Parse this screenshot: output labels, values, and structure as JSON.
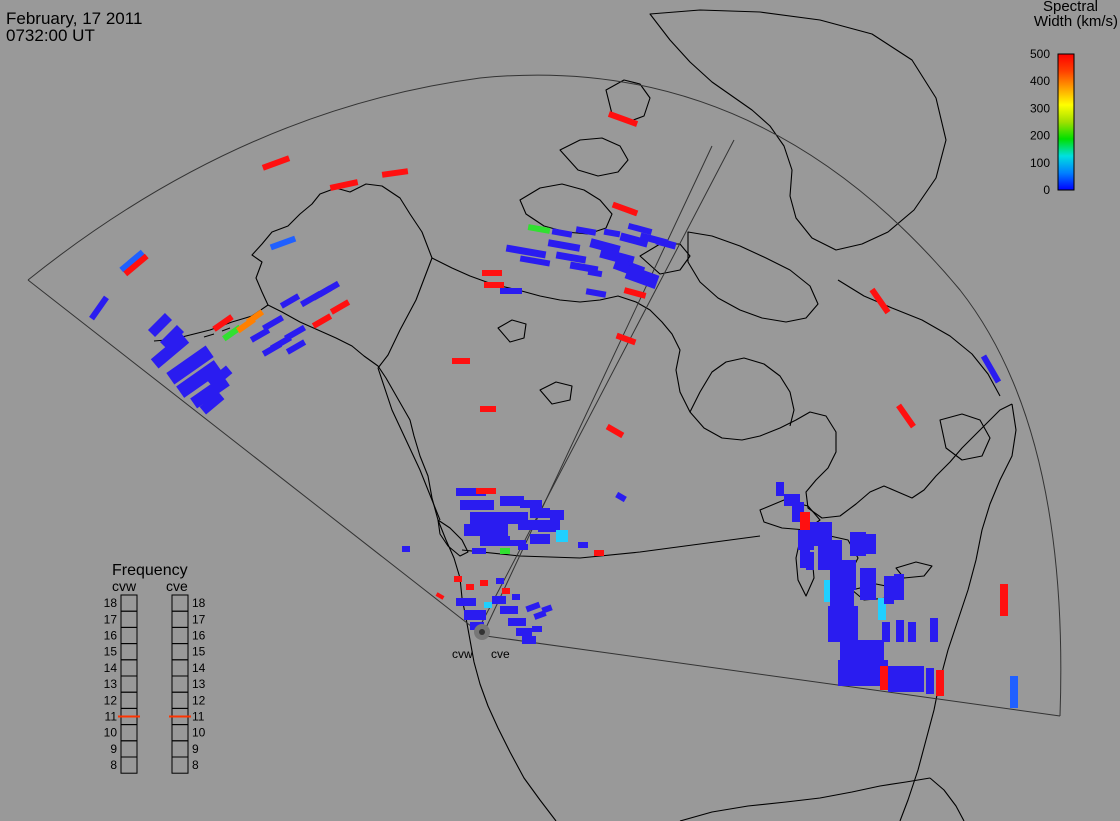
{
  "title": {
    "date": "February, 17 2011",
    "time": "0732:00 UT"
  },
  "colorbar": {
    "title_line1": "Spectral",
    "title_line2": "Width (km/s)",
    "ticks": [
      "500",
      "400",
      "300",
      "200",
      "100",
      "0"
    ],
    "colors": [
      "#0000ff",
      "#0080ff",
      "#00e0e0",
      "#00e000",
      "#a0e000",
      "#ffff00",
      "#ffa000",
      "#ff4000",
      "#ff0000"
    ]
  },
  "frequency_panel": {
    "title": "Frequency",
    "radars": [
      "cvw",
      "cve"
    ],
    "scale": [
      "18",
      "17",
      "16",
      "15",
      "14",
      "13",
      "12",
      "11",
      "10",
      "9",
      "8"
    ],
    "current_mhz": {
      "cvw": 11,
      "cve": 11
    },
    "indicator_color": "#ff3300"
  },
  "stations": [
    {
      "code": "cvw"
    },
    {
      "code": "cve"
    }
  ]
}
